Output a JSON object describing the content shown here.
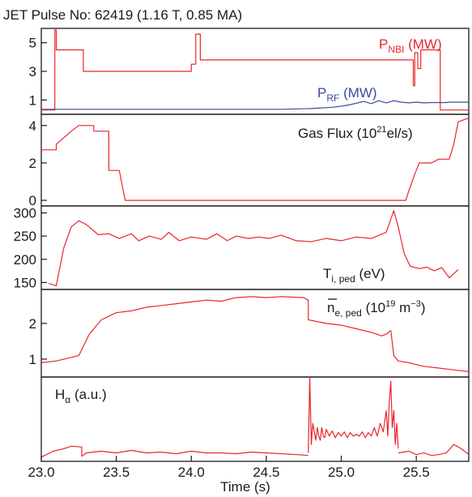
{
  "chart_data": {
    "type": "line",
    "title": "JET Pulse No: 62419 (1.16 T, 0.85 MA)",
    "xlabel": "Time (s)",
    "xlim": [
      23.0,
      25.85
    ],
    "x_ticks": [
      "23.0",
      "23.5",
      "24.0",
      "24.5",
      "25.0",
      "25.5"
    ],
    "x_tick_values": [
      23.0,
      23.5,
      24.0,
      24.5,
      25.0,
      25.5
    ],
    "colors": {
      "red": "#e8262b",
      "blue": "#3a4a9e",
      "axis": "#1a1a1a"
    },
    "panels": [
      {
        "id": "power",
        "ylim": [
          0,
          6.0
        ],
        "y_ticks": [
          "5",
          "3",
          "1"
        ],
        "y_tick_values": [
          5,
          3,
          1
        ],
        "series": [
          {
            "name": "P_NBI (MW)",
            "label_main": "P",
            "label_sub": "NBI",
            "label_unit": " (MW)",
            "color": "#e8262b",
            "x": [
              23.0,
              23.09,
              23.09,
              23.1,
              23.1,
              23.28,
              23.28,
              24.0,
              24.0,
              24.03,
              24.03,
              24.06,
              24.06,
              25.48,
              25.48,
              25.49,
              25.49,
              25.51,
              25.51,
              25.53,
              25.53,
              25.56,
              25.56,
              25.66,
              25.66,
              25.85
            ],
            "y": [
              0.3,
              0.3,
              5.9,
              5.9,
              4.5,
              4.5,
              3.0,
              3.0,
              3.5,
              3.5,
              5.6,
              5.6,
              3.8,
              3.8,
              2.0,
              2.0,
              4.3,
              4.3,
              3.2,
              3.2,
              4.5,
              4.5,
              4.5,
              4.5,
              0.3,
              0.3
            ]
          },
          {
            "name": "P_RF (MW)",
            "label_main": "P",
            "label_sub": "RF",
            "label_unit": " (MW)",
            "color": "#3a4a9e",
            "x": [
              23.0,
              24.6,
              24.8,
              24.95,
              25.05,
              25.15,
              25.2,
              25.25,
              25.3,
              25.35,
              25.4,
              25.45,
              25.5,
              25.55,
              25.6,
              25.7,
              25.72,
              25.85
            ],
            "y": [
              0.35,
              0.35,
              0.4,
              0.5,
              0.65,
              0.9,
              0.75,
              0.95,
              0.8,
              0.95,
              0.85,
              0.8,
              0.85,
              0.8,
              0.82,
              0.82,
              0.85,
              0.85
            ]
          }
        ]
      },
      {
        "id": "gas",
        "ylim": [
          -0.3,
          4.6
        ],
        "y_ticks": [
          "4",
          "2",
          "0"
        ],
        "y_tick_values": [
          4,
          2,
          0
        ],
        "annotation": {
          "pre": "Gas Flux (10",
          "sup": "21",
          "post": "el/s)"
        },
        "series": [
          {
            "name": "Gas Flux",
            "color": "#e8262b",
            "x": [
              23.0,
              23.1,
              23.1,
              23.2,
              23.25,
              23.3,
              23.35,
              23.35,
              23.42,
              23.45,
              23.45,
              23.52,
              23.56,
              25.43,
              25.45,
              25.49,
              25.52,
              25.6,
              25.65,
              25.72,
              25.75,
              25.78,
              25.85
            ],
            "y": [
              2.7,
              2.7,
              3.0,
              3.7,
              4.0,
              4.0,
              4.0,
              3.7,
              3.7,
              3.7,
              1.6,
              1.6,
              0.0,
              0.0,
              0.5,
              1.4,
              2.0,
              2.0,
              2.2,
              2.2,
              3.0,
              4.2,
              4.4
            ]
          }
        ]
      },
      {
        "id": "ti",
        "ylim": [
          135,
          315
        ],
        "y_ticks": [
          "300",
          "250",
          "200",
          "150"
        ],
        "y_tick_values": [
          300,
          250,
          200,
          150
        ],
        "annotation": {
          "main": "T",
          "sub": "i, ped",
          "unit": " (eV)"
        },
        "series": [
          {
            "name": "T_i,ped",
            "color": "#e8262b",
            "x": [
              23.05,
              23.1,
              23.15,
              23.2,
              23.25,
              23.3,
              23.38,
              23.45,
              23.52,
              23.6,
              23.65,
              23.72,
              23.8,
              23.85,
              23.92,
              24.0,
              24.1,
              24.17,
              24.24,
              24.3,
              24.38,
              24.45,
              24.52,
              24.6,
              24.7,
              24.8,
              24.9,
              25.0,
              25.1,
              25.2,
              25.3,
              25.35,
              25.38,
              25.42,
              25.46,
              25.52,
              25.57,
              25.62,
              25.67,
              25.72,
              25.78
            ],
            "y": [
              148,
              143,
              225,
              270,
              283,
              275,
              253,
              255,
              245,
              255,
              240,
              250,
              243,
              258,
              240,
              248,
              243,
              255,
              240,
              250,
              245,
              248,
              245,
              252,
              240,
              238,
              245,
              240,
              248,
              245,
              258,
              305,
              270,
              212,
              185,
              180,
              183,
              175,
              182,
              160,
              178
            ]
          }
        ]
      },
      {
        "id": "ne",
        "ylim": [
          0.5,
          2.95
        ],
        "y_ticks": [
          "2",
          "1"
        ],
        "y_tick_values": [
          2,
          1
        ],
        "annotation": {
          "main": "n",
          "sub": "e, ped",
          "pre_unit": "  (10",
          "sup": "19",
          "unit": " m",
          "sup2": "−3",
          "close": ")"
        },
        "series": [
          {
            "name": "n_e,ped",
            "color": "#e8262b",
            "x": [
              23.0,
              23.1,
              23.2,
              23.25,
              23.32,
              23.4,
              23.5,
              23.6,
              23.7,
              23.8,
              23.9,
              24.0,
              24.1,
              24.2,
              24.3,
              24.4,
              24.5,
              24.6,
              24.75,
              24.78,
              24.78,
              24.9,
              25.0,
              25.1,
              25.2,
              25.27,
              25.3,
              25.33,
              25.35,
              25.38,
              25.45,
              25.55,
              25.65,
              25.75,
              25.85
            ],
            "y": [
              0.9,
              0.95,
              1.05,
              1.1,
              1.7,
              2.1,
              2.3,
              2.35,
              2.45,
              2.5,
              2.55,
              2.6,
              2.65,
              2.62,
              2.72,
              2.75,
              2.72,
              2.75,
              2.72,
              2.65,
              2.1,
              2.0,
              1.95,
              1.85,
              1.75,
              1.65,
              1.7,
              1.8,
              1.1,
              0.95,
              0.9,
              0.8,
              0.75,
              0.7,
              0.65
            ]
          }
        ]
      },
      {
        "id": "halpha",
        "ylim": [
          0,
          1.0
        ],
        "y_ticks": [],
        "y_tick_values": [],
        "annotation": {
          "main": "H",
          "sub": "α",
          "unit": " (a.u.)"
        },
        "series": [
          {
            "name": "H_alpha",
            "color": "#e8262b",
            "x": [
              23.0,
              23.08,
              23.15,
              23.2,
              23.27,
              23.27,
              23.3,
              23.4,
              23.5,
              23.6,
              23.7,
              23.8,
              23.9,
              24.0,
              24.1,
              24.2,
              24.3,
              24.4,
              24.5,
              24.6,
              24.7,
              24.78
            ],
            "y": [
              0.05,
              0.12,
              0.15,
              0.18,
              0.17,
              0.06,
              0.1,
              0.12,
              0.1,
              0.13,
              0.1,
              0.11,
              0.09,
              0.12,
              0.1,
              0.1,
              0.09,
              0.11,
              0.1,
              0.09,
              0.08,
              0.07
            ]
          },
          {
            "name": "H_alpha ELM bursts",
            "color": "#e8262b",
            "x": [
              24.78,
              24.79,
              24.8,
              24.81,
              24.82,
              24.83,
              24.84,
              24.85,
              24.86,
              24.87,
              24.88,
              24.89,
              24.9,
              24.92,
              24.94,
              24.96,
              24.98,
              25.0,
              25.02,
              25.04,
              25.06,
              25.08,
              25.1,
              25.12,
              25.14,
              25.16,
              25.18,
              25.2,
              25.22,
              25.24,
              25.26,
              25.28,
              25.3,
              25.31,
              25.32,
              25.33,
              25.34,
              25.35,
              25.36,
              25.37,
              25.38
            ],
            "y": [
              0.1,
              1.0,
              0.2,
              0.45,
              0.35,
              0.25,
              0.4,
              0.3,
              0.25,
              0.4,
              0.3,
              0.28,
              0.38,
              0.3,
              0.36,
              0.28,
              0.34,
              0.3,
              0.35,
              0.28,
              0.34,
              0.3,
              0.32,
              0.3,
              0.35,
              0.28,
              0.34,
              0.3,
              0.4,
              0.3,
              0.45,
              0.35,
              0.6,
              0.3,
              0.7,
              0.95,
              0.4,
              0.6,
              0.2,
              0.45,
              0.15
            ]
          },
          {
            "name": "H_alpha tail",
            "color": "#e8262b",
            "x": [
              25.38,
              25.45,
              25.5,
              25.55,
              25.6,
              25.65,
              25.7,
              25.75,
              25.8,
              25.85
            ],
            "y": [
              0.1,
              0.12,
              0.08,
              0.1,
              0.07,
              0.08,
              0.1,
              0.2,
              0.15,
              0.08
            ]
          }
        ]
      }
    ]
  }
}
